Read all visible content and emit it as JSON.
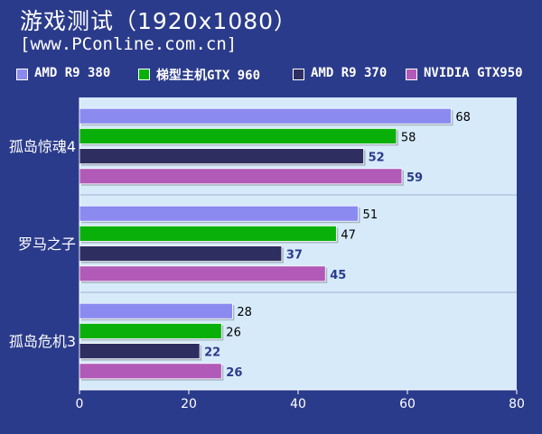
{
  "header": {
    "title": "游戏测试（1920x1080）",
    "subtitle": "[www.PConline.com.cn]"
  },
  "colors": {
    "background": "#2b3b8b",
    "plot_area": "#d6eafa",
    "plot_grid": "#9db4d0",
    "label_dark": "#2b3b8b"
  },
  "chart_data": {
    "type": "bar",
    "orientation": "horizontal",
    "title": "游戏测试（1920x1080）",
    "categories": [
      "孤岛惊魂4",
      "罗马之子",
      "孤岛危机3"
    ],
    "series": [
      {
        "name": "AMD R9 380",
        "color": "#8a8af0",
        "values": [
          68,
          51,
          28
        ]
      },
      {
        "name": "梯型主机GTX 960",
        "color": "#0ab00a",
        "values": [
          58,
          47,
          26
        ]
      },
      {
        "name": "AMD R9 370",
        "color": "#2e2e60",
        "values": [
          52,
          37,
          22
        ]
      },
      {
        "name": "NVIDIA GTX950",
        "color": "#b25ab8",
        "values": [
          59,
          45,
          26
        ]
      }
    ],
    "xlim": [
      0,
      80
    ],
    "xticks": [
      "0",
      "20",
      "40",
      "60",
      "80"
    ],
    "xlabel": "",
    "ylabel": "",
    "legend_position": "top",
    "grid": false
  }
}
